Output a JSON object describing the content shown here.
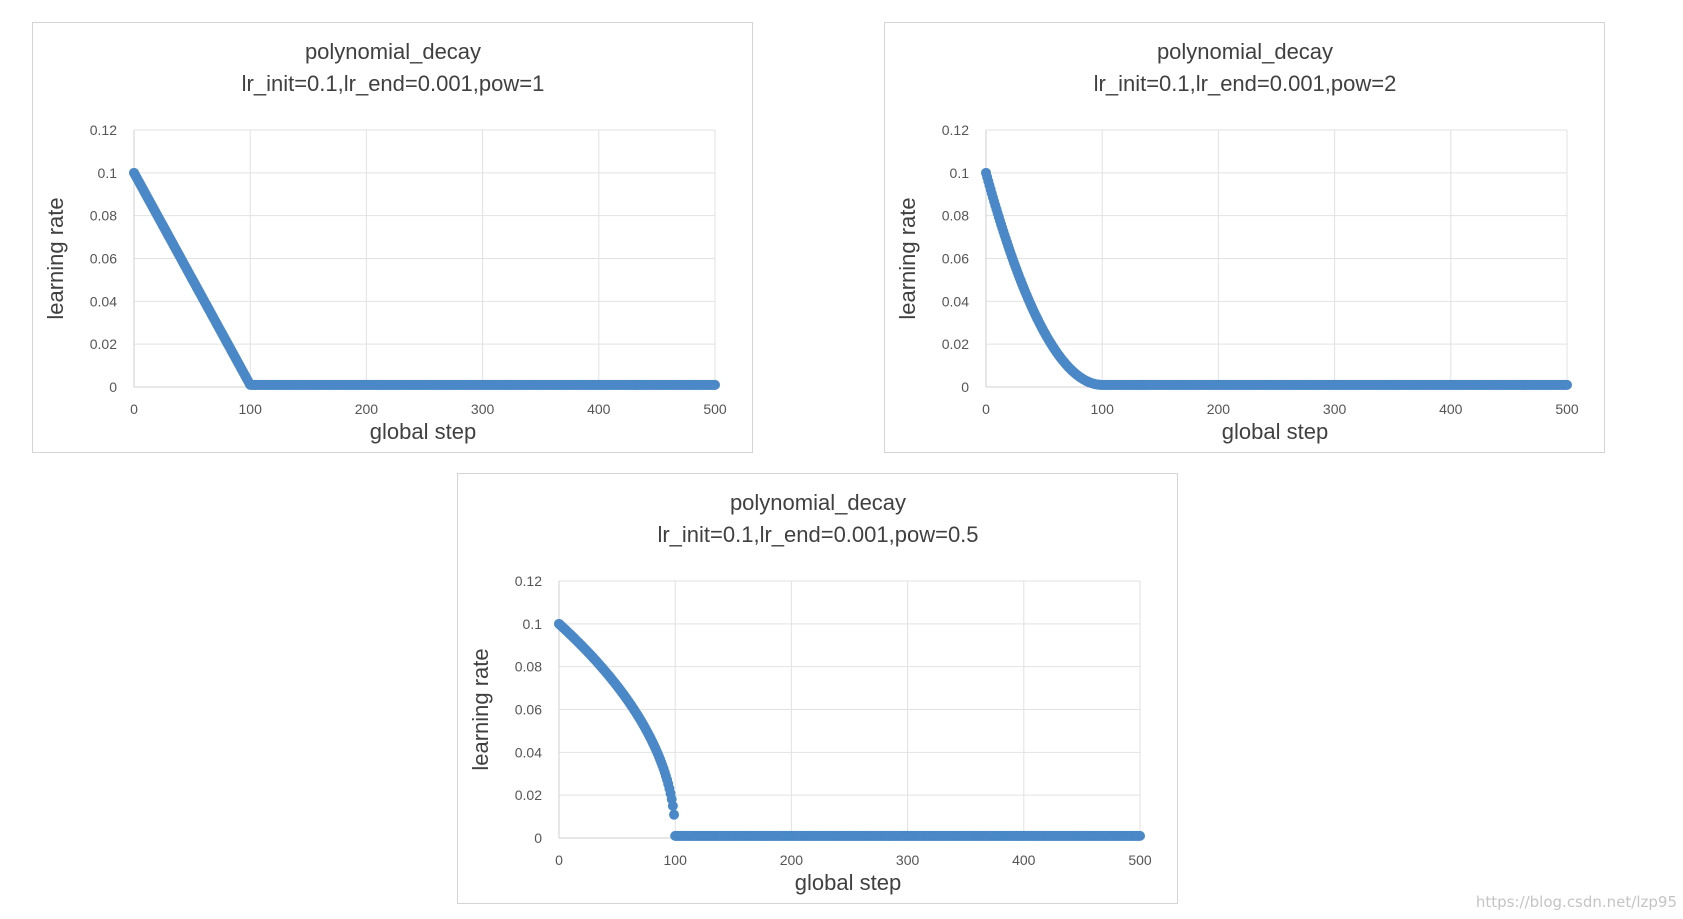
{
  "watermark": "https://blog.csdn.net/lzp95",
  "colors": {
    "series": "#4a88c7",
    "grid": "#e2e2e2",
    "text": "#404040",
    "tick": "#555555"
  },
  "chart_data": [
    {
      "type": "scatter",
      "title": "polynomial_decay",
      "subtitle": "lr_init=0.1,lr_end=0.001,pow=1",
      "xlabel": "global step",
      "ylabel": "learning rate",
      "xlim": [
        0,
        500
      ],
      "ylim": [
        0,
        0.12
      ],
      "xticks": [
        "0",
        "100",
        "200",
        "300",
        "400",
        "500"
      ],
      "yticks": [
        "0",
        "0.02",
        "0.04",
        "0.06",
        "0.08",
        "0.1",
        "0.12"
      ],
      "grid": true,
      "params": {
        "lr_init": 0.1,
        "lr_end": 0.001,
        "pow": 1,
        "decay_steps": 100,
        "max_step": 500
      },
      "sample_points": [
        [
          0,
          0.1
        ],
        [
          20,
          0.0802
        ],
        [
          40,
          0.0604
        ],
        [
          60,
          0.0406
        ],
        [
          80,
          0.0208
        ],
        [
          100,
          0.001
        ],
        [
          300,
          0.001
        ],
        [
          500,
          0.001
        ]
      ]
    },
    {
      "type": "scatter",
      "title": "polynomial_decay",
      "subtitle": "lr_init=0.1,lr_end=0.001,pow=2",
      "xlabel": "global step",
      "ylabel": "learning rate",
      "xlim": [
        0,
        500
      ],
      "ylim": [
        0,
        0.12
      ],
      "xticks": [
        "0",
        "100",
        "200",
        "300",
        "400",
        "500"
      ],
      "yticks": [
        "0",
        "0.02",
        "0.04",
        "0.06",
        "0.08",
        "0.1",
        "0.12"
      ],
      "grid": true,
      "params": {
        "lr_init": 0.1,
        "lr_end": 0.001,
        "pow": 2,
        "decay_steps": 100,
        "max_step": 500
      },
      "sample_points": [
        [
          0,
          0.1
        ],
        [
          20,
          0.0644
        ],
        [
          40,
          0.0366
        ],
        [
          60,
          0.0168
        ],
        [
          80,
          0.005
        ],
        [
          100,
          0.001
        ],
        [
          300,
          0.001
        ],
        [
          500,
          0.001
        ]
      ]
    },
    {
      "type": "scatter",
      "title": "polynomial_decay",
      "subtitle": "lr_init=0.1,lr_end=0.001,pow=0.5",
      "xlabel": "global step",
      "ylabel": "learning rate",
      "xlim": [
        0,
        500
      ],
      "ylim": [
        0,
        0.12
      ],
      "xticks": [
        "0",
        "100",
        "200",
        "300",
        "400",
        "500"
      ],
      "yticks": [
        "0",
        "0.02",
        "0.04",
        "0.06",
        "0.08",
        "0.1",
        "0.12"
      ],
      "grid": true,
      "params": {
        "lr_init": 0.1,
        "lr_end": 0.001,
        "pow": 0.5,
        "decay_steps": 100,
        "max_step": 500
      },
      "sample_points": [
        [
          0,
          0.1
        ],
        [
          20,
          0.0895
        ],
        [
          40,
          0.0777
        ],
        [
          60,
          0.0636
        ],
        [
          80,
          0.0453
        ],
        [
          99,
          0.0109
        ],
        [
          100,
          0.001
        ],
        [
          300,
          0.001
        ],
        [
          500,
          0.001
        ]
      ]
    }
  ]
}
